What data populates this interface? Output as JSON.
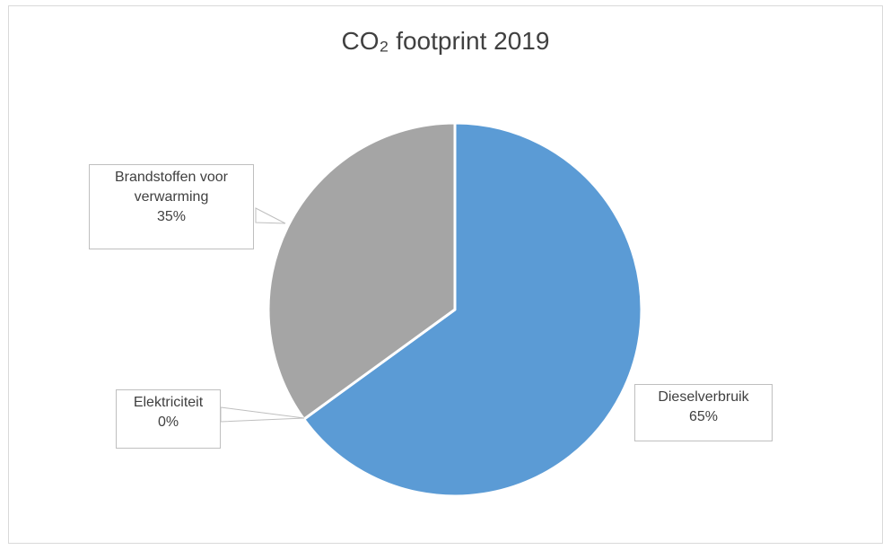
{
  "chart_data": {
    "type": "pie",
    "title": "CO₂ footprint 2019",
    "categories": [
      "Dieselverbruik",
      "Elektriciteit",
      "Brandstoffen voor verwarming"
    ],
    "values": [
      65,
      0,
      35
    ],
    "value_labels": [
      "65%",
      "0%",
      "35%"
    ],
    "label_lines": {
      "Dieselverbruik": [
        "Dieselverbruik"
      ],
      "Elektriciteit": [
        "Elektriciteit"
      ],
      "Brandstoffen voor verwarming": [
        "Brandstoffen voor",
        "verwarming"
      ]
    },
    "colors": [
      "#5b9bd5",
      "#ed7d31",
      "#a5a5a5"
    ],
    "legend": "none",
    "start_angle_deg": 0,
    "direction": "clockwise"
  }
}
